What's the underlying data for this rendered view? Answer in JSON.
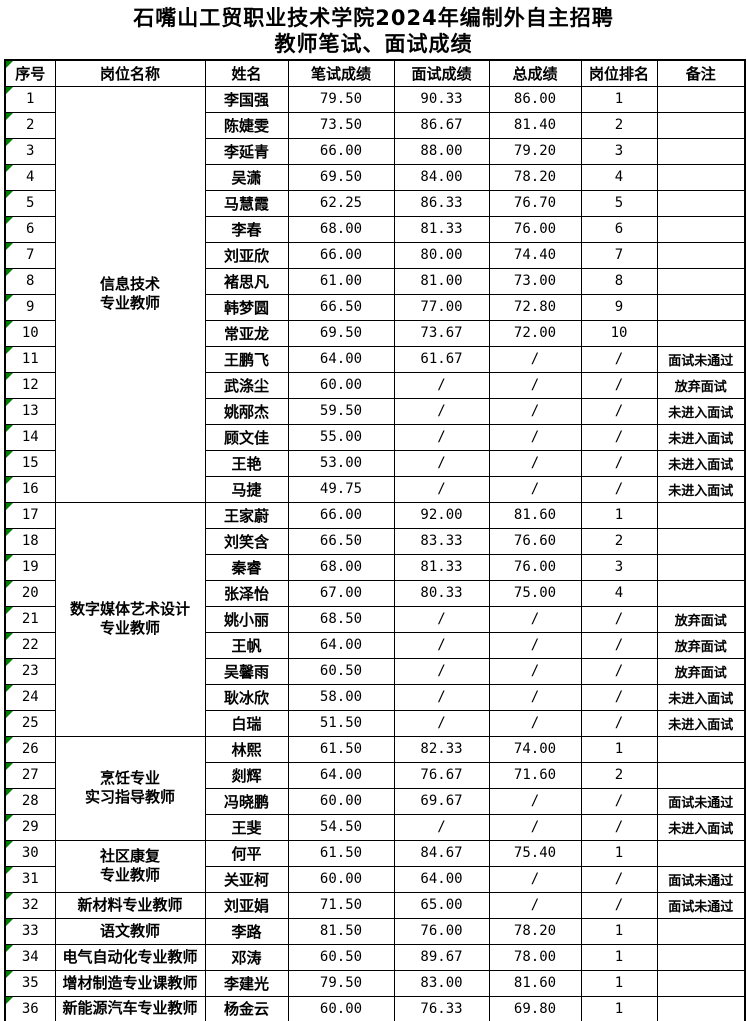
{
  "page": {
    "title_line1": "石嘴山工贸职业技术学院2024年编制外自主招聘",
    "title_line2": "教师笔试、面试成绩"
  },
  "colors": {
    "indicator_green": "#008000",
    "border": "#000000",
    "background": "#ffffff"
  },
  "table": {
    "headers": [
      "序号",
      "岗位名称",
      "姓名",
      "笔试成绩",
      "面试成绩",
      "总成绩",
      "岗位排名",
      "备注"
    ],
    "groups": [
      {
        "row_start": 1,
        "row_span": 16,
        "lines": [
          "信息技术",
          "专业教师"
        ]
      },
      {
        "row_start": 17,
        "row_span": 9,
        "lines": [
          "数字媒体艺术设计",
          "专业教师"
        ]
      },
      {
        "row_start": 26,
        "row_span": 4,
        "lines": [
          "烹饪专业",
          "实习指导教师"
        ]
      },
      {
        "row_start": 30,
        "row_span": 2,
        "lines": [
          "社区康复",
          "专业教师"
        ]
      },
      {
        "row_start": 32,
        "row_span": 1,
        "lines": [
          "新材料专业教师"
        ]
      },
      {
        "row_start": 33,
        "row_span": 1,
        "lines": [
          "语文教师"
        ]
      },
      {
        "row_start": 34,
        "row_span": 1,
        "lines": [
          "电气自动化专业教师"
        ]
      },
      {
        "row_start": 35,
        "row_span": 1,
        "lines": [
          "增材制造专业课教师"
        ]
      },
      {
        "row_start": 36,
        "row_span": 1,
        "lines": [
          "新能源汽车专业教师"
        ]
      }
    ],
    "rows": [
      {
        "no": "1",
        "name": "李国强",
        "written": "79.50",
        "interview": "90.33",
        "total": "86.00",
        "rank": "1",
        "remark": ""
      },
      {
        "no": "2",
        "name": "陈婕雯",
        "written": "73.50",
        "interview": "86.67",
        "total": "81.40",
        "rank": "2",
        "remark": ""
      },
      {
        "no": "3",
        "name": "李延青",
        "written": "66.00",
        "interview": "88.00",
        "total": "79.20",
        "rank": "3",
        "remark": ""
      },
      {
        "no": "4",
        "name": "吴潇",
        "written": "69.50",
        "interview": "84.00",
        "total": "78.20",
        "rank": "4",
        "remark": ""
      },
      {
        "no": "5",
        "name": "马慧霞",
        "written": "62.25",
        "interview": "86.33",
        "total": "76.70",
        "rank": "5",
        "remark": ""
      },
      {
        "no": "6",
        "name": "李春",
        "written": "68.00",
        "interview": "81.33",
        "total": "76.00",
        "rank": "6",
        "remark": ""
      },
      {
        "no": "7",
        "name": "刘亚欣",
        "written": "66.00",
        "interview": "80.00",
        "total": "74.40",
        "rank": "7",
        "remark": ""
      },
      {
        "no": "8",
        "name": "褚思凡",
        "written": "61.00",
        "interview": "81.00",
        "total": "73.00",
        "rank": "8",
        "remark": ""
      },
      {
        "no": "9",
        "name": "韩梦圆",
        "written": "66.50",
        "interview": "77.00",
        "total": "72.80",
        "rank": "9",
        "remark": ""
      },
      {
        "no": "10",
        "name": "常亚龙",
        "written": "69.50",
        "interview": "73.67",
        "total": "72.00",
        "rank": "10",
        "remark": ""
      },
      {
        "no": "11",
        "name": "王鹏飞",
        "written": "64.00",
        "interview": "61.67",
        "total": "/",
        "rank": "/",
        "remark": "面试未通过"
      },
      {
        "no": "12",
        "name": "武涤尘",
        "written": "60.00",
        "interview": "/",
        "total": "/",
        "rank": "/",
        "remark": "放弃面试"
      },
      {
        "no": "13",
        "name": "姚邴杰",
        "written": "59.50",
        "interview": "/",
        "total": "/",
        "rank": "/",
        "remark": "未进入面试"
      },
      {
        "no": "14",
        "name": "顾文佳",
        "written": "55.00",
        "interview": "/",
        "total": "/",
        "rank": "/",
        "remark": "未进入面试"
      },
      {
        "no": "15",
        "name": "王艳",
        "written": "53.00",
        "interview": "/",
        "total": "/",
        "rank": "/",
        "remark": "未进入面试"
      },
      {
        "no": "16",
        "name": "马捷",
        "written": "49.75",
        "interview": "/",
        "total": "/",
        "rank": "/",
        "remark": "未进入面试"
      },
      {
        "no": "17",
        "name": "王家蔚",
        "written": "66.00",
        "interview": "92.00",
        "total": "81.60",
        "rank": "1",
        "remark": ""
      },
      {
        "no": "18",
        "name": "刘笑含",
        "written": "66.50",
        "interview": "83.33",
        "total": "76.60",
        "rank": "2",
        "remark": ""
      },
      {
        "no": "19",
        "name": "秦睿",
        "written": "68.00",
        "interview": "81.33",
        "total": "76.00",
        "rank": "3",
        "remark": ""
      },
      {
        "no": "20",
        "name": "张泽怡",
        "written": "67.00",
        "interview": "80.33",
        "total": "75.00",
        "rank": "4",
        "remark": ""
      },
      {
        "no": "21",
        "name": "姚小丽",
        "written": "68.50",
        "interview": "/",
        "total": "/",
        "rank": "/",
        "remark": "放弃面试"
      },
      {
        "no": "22",
        "name": "王帆",
        "written": "64.00",
        "interview": "/",
        "total": "/",
        "rank": "/",
        "remark": "放弃面试"
      },
      {
        "no": "23",
        "name": "吴馨雨",
        "written": "60.50",
        "interview": "/",
        "total": "/",
        "rank": "/",
        "remark": "放弃面试"
      },
      {
        "no": "24",
        "name": "耿冰欣",
        "written": "58.00",
        "interview": "/",
        "total": "/",
        "rank": "/",
        "remark": "未进入面试"
      },
      {
        "no": "25",
        "name": "白瑞",
        "written": "51.50",
        "interview": "/",
        "total": "/",
        "rank": "/",
        "remark": "未进入面试"
      },
      {
        "no": "26",
        "name": "林熙",
        "written": "61.50",
        "interview": "82.33",
        "total": "74.00",
        "rank": "1",
        "remark": ""
      },
      {
        "no": "27",
        "name": "剡辉",
        "written": "64.00",
        "interview": "76.67",
        "total": "71.60",
        "rank": "2",
        "remark": ""
      },
      {
        "no": "28",
        "name": "冯晓鹏",
        "written": "60.00",
        "interview": "69.67",
        "total": "/",
        "rank": "/",
        "remark": "面试未通过"
      },
      {
        "no": "29",
        "name": "王斐",
        "written": "54.50",
        "interview": "/",
        "total": "/",
        "rank": "/",
        "remark": "未进入面试"
      },
      {
        "no": "30",
        "name": "何平",
        "written": "61.50",
        "interview": "84.67",
        "total": "75.40",
        "rank": "1",
        "remark": ""
      },
      {
        "no": "31",
        "name": "关亚柯",
        "written": "60.00",
        "interview": "64.00",
        "total": "/",
        "rank": "/",
        "remark": "面试未通过"
      },
      {
        "no": "32",
        "name": "刘亚娟",
        "written": "71.50",
        "interview": "65.00",
        "total": "/",
        "rank": "/",
        "remark": "面试未通过"
      },
      {
        "no": "33",
        "name": "李路",
        "written": "81.50",
        "interview": "76.00",
        "total": "78.20",
        "rank": "1",
        "remark": ""
      },
      {
        "no": "34",
        "name": "邓涛",
        "written": "60.50",
        "interview": "89.67",
        "total": "78.00",
        "rank": "1",
        "remark": ""
      },
      {
        "no": "35",
        "name": "李建光",
        "written": "79.50",
        "interview": "83.00",
        "total": "81.60",
        "rank": "1",
        "remark": ""
      },
      {
        "no": "36",
        "name": "杨金云",
        "written": "60.00",
        "interview": "76.33",
        "total": "69.80",
        "rank": "1",
        "remark": ""
      }
    ]
  }
}
